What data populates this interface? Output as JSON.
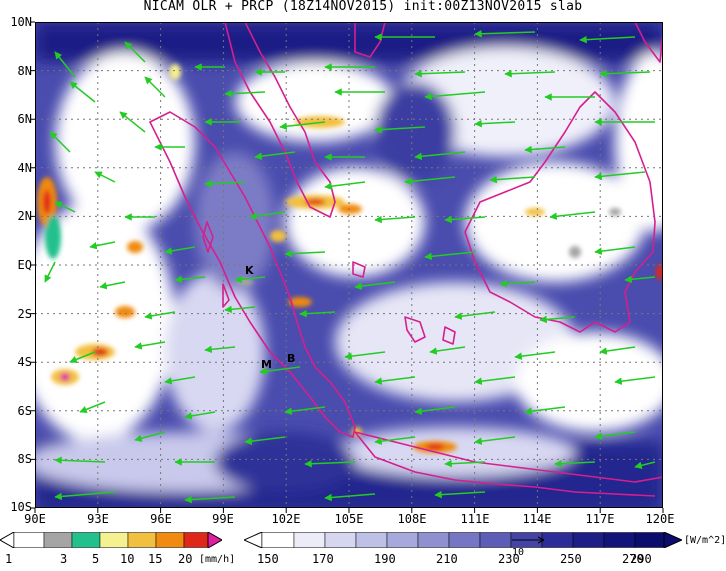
{
  "title": "NICAM OLR + PRCP (18Z14NOV2015) init:00Z13NOV2015 slab",
  "map": {
    "lat_labels": [
      "10N",
      "8N",
      "6N",
      "4N",
      "2N",
      "EQ",
      "2S",
      "4S",
      "6S",
      "8S",
      "10S"
    ],
    "lon_labels": [
      "90E",
      "93E",
      "96E",
      "99E",
      "102E",
      "105E",
      "108E",
      "111E",
      "114E",
      "117E",
      "120E"
    ],
    "extent": {
      "lon": [
        90,
        120
      ],
      "lat": [
        -10,
        10
      ]
    },
    "sites": [
      {
        "label": "K",
        "lon": 100.7,
        "lat": -0.2
      },
      {
        "label": "M",
        "lon": 100.2,
        "lat": -4.0
      },
      {
        "label": "B",
        "lon": 101.6,
        "lat": -3.8
      }
    ],
    "colors": {
      "coast": "#d61f8f",
      "wind": "#22cc22",
      "grid": "#777777"
    }
  },
  "precip_bar": {
    "labels": [
      "1",
      "3",
      "5",
      "10",
      "15",
      "20"
    ],
    "unit": "[mm/h]",
    "colors": [
      "#a5a5a5",
      "#22c08c",
      "#f5f090",
      "#f2c040",
      "#f08a10",
      "#e02818",
      "#e01fa0"
    ]
  },
  "olr_bar": {
    "labels": [
      "150",
      "170",
      "190",
      "210",
      "230",
      "250",
      "270",
      "290"
    ],
    "unit": "[W/m^2]",
    "colors": [
      "#ffffff",
      "#ececf8",
      "#d6d6f0",
      "#bfc0e6",
      "#a7a8dc",
      "#8f90d0",
      "#7677c4",
      "#5c5db6",
      "#4344a6",
      "#2c2d96",
      "#1d1f86",
      "#12147a",
      "#0b0d6e"
    ]
  },
  "wind_ref": {
    "label": "10"
  }
}
